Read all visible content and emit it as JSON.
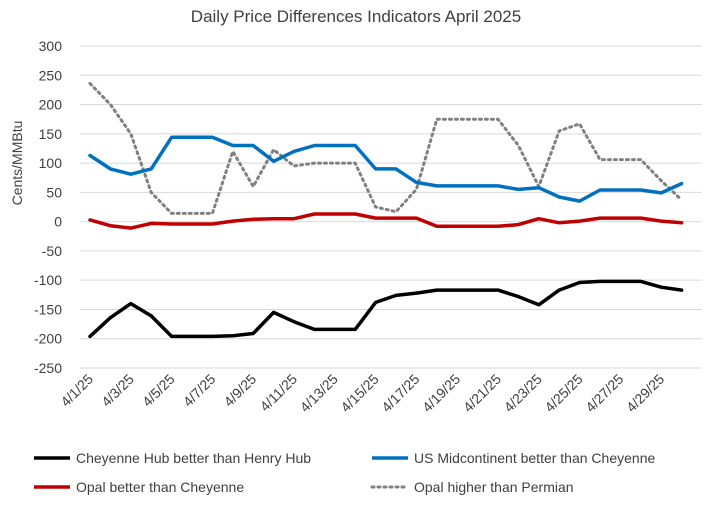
{
  "chart_data": {
    "type": "line",
    "title": "Daily Price Differences Indicators April 2025",
    "ylabel": "Cents/MMBtu",
    "xlabel": "",
    "ylim": [
      -250,
      300
    ],
    "yticks": [
      300,
      250,
      200,
      150,
      100,
      50,
      0,
      -50,
      -100,
      -150,
      -200,
      -250
    ],
    "grid": "horizontal",
    "legend_position": "bottom",
    "x": [
      "4/1/25",
      "4/2/25",
      "4/3/25",
      "4/4/25",
      "4/5/25",
      "4/6/25",
      "4/7/25",
      "4/8/25",
      "4/9/25",
      "4/10/25",
      "4/11/25",
      "4/12/25",
      "4/13/25",
      "4/14/25",
      "4/15/25",
      "4/16/25",
      "4/17/25",
      "4/18/25",
      "4/19/25",
      "4/20/25",
      "4/21/25",
      "4/22/25",
      "4/23/25",
      "4/24/25",
      "4/25/25",
      "4/26/25",
      "4/27/25",
      "4/28/25",
      "4/29/25",
      "4/30/25"
    ],
    "xtick_labels": [
      "4/1/25",
      "4/3/25",
      "4/5/25",
      "4/7/25",
      "4/9/25",
      "4/11/25",
      "4/13/25",
      "4/15/25",
      "4/17/25",
      "4/19/25",
      "4/21/25",
      "4/23/25",
      "4/25/25",
      "4/27/25",
      "4/29/25"
    ],
    "series": [
      {
        "name": "Cheyenne Hub better than Henry Hub",
        "color": "#000000",
        "style": "solid",
        "values": [
          -196,
          -164,
          -140,
          -161,
          -196,
          -196,
          -196,
          -195,
          -191,
          -155,
          -171,
          -184,
          -184,
          -184,
          -138,
          -126,
          -122,
          -117,
          -117,
          -117,
          -117,
          -128,
          -142,
          -117,
          -104,
          -102,
          -102,
          -102,
          -112,
          -117
        ]
      },
      {
        "name": "US Midcontinent better than Cheyenne",
        "color": "#0070C0",
        "style": "solid",
        "values": [
          113,
          90,
          81,
          90,
          144,
          144,
          144,
          130,
          130,
          103,
          120,
          130,
          130,
          130,
          90,
          90,
          67,
          61,
          61,
          61,
          61,
          55,
          58,
          42,
          35,
          54,
          54,
          54,
          49,
          65
        ]
      },
      {
        "name": "Opal better than Cheyenne",
        "color": "#C00000",
        "style": "solid",
        "values": [
          3,
          -7,
          -11,
          -3,
          -4,
          -4,
          -4,
          1,
          4,
          5,
          5,
          13,
          13,
          13,
          6,
          6,
          6,
          -8,
          -8,
          -8,
          -8,
          -5,
          5,
          -2,
          1,
          6,
          6,
          6,
          1,
          -2
        ]
      },
      {
        "name": "Opal higher than Permian",
        "color": "#808080",
        "style": "dotted",
        "values": [
          236,
          200,
          150,
          50,
          14,
          14,
          14,
          120,
          60,
          123,
          95,
          100,
          100,
          100,
          25,
          17,
          55,
          175,
          175,
          175,
          175,
          130,
          60,
          155,
          167,
          106,
          106,
          106,
          70,
          37
        ]
      }
    ]
  }
}
